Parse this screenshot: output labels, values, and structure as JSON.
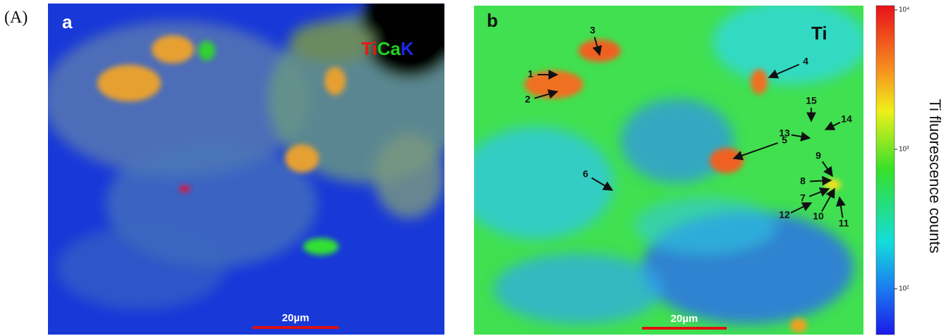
{
  "figure_label": "(A)",
  "panels": [
    {
      "label": "a",
      "element_labels": [
        "Ti",
        "Ca",
        "K"
      ],
      "scale_bar": "20µm"
    },
    {
      "label": "b",
      "element_label": "Ti",
      "scale_bar": "20µm",
      "annotations": [
        "1",
        "2",
        "3",
        "4",
        "5",
        "6",
        "7",
        "8",
        "9",
        "10",
        "11",
        "12",
        "13",
        "14",
        "15"
      ]
    }
  ],
  "colorbar": {
    "ticks": [
      "10⁴",
      "10³",
      "10²"
    ],
    "label": "Ti fluorescence counts"
  }
}
